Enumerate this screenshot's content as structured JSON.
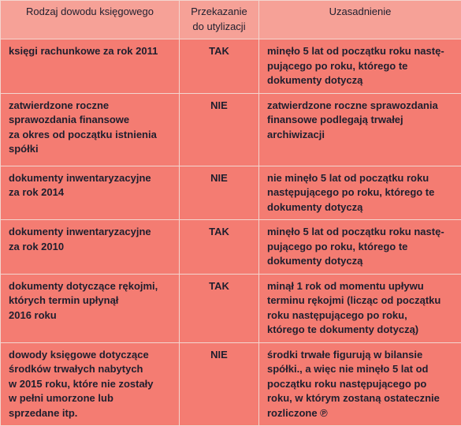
{
  "table": {
    "header": [
      [
        "Rodzaj dowodu księgowego"
      ],
      [
        "Przekazanie",
        "do utylizacji"
      ],
      [
        "Uzasadnienie"
      ]
    ],
    "rows": [
      [
        [
          "księgi rachunkowe za rok 2011"
        ],
        [
          "TAK"
        ],
        [
          "minęło 5 lat od początku roku nastę-",
          "pującego po roku, którego te",
          "dokumenty dotyczą"
        ]
      ],
      [
        [
          "zatwierdzone roczne",
          "sprawozdania finansowe",
          "za okres od początku istnienia",
          "spółki"
        ],
        [
          "NIE"
        ],
        [
          "zatwierdzone roczne sprawozdania",
          "finansowe podlegają trwałej",
          "archiwizacji"
        ]
      ],
      [
        [
          "dokumenty inwentaryzacyjne",
          "za rok 2014"
        ],
        [
          "NIE"
        ],
        [
          "nie minęło 5 lat od początku roku",
          "następującego po roku, którego te",
          "dokumenty dotyczą"
        ]
      ],
      [
        [
          "dokumenty inwentaryzacyjne",
          "za rok 2010"
        ],
        [
          "TAK"
        ],
        [
          "minęło 5 lat od początku roku nastę-",
          "pującego po roku, którego te",
          "dokumenty dotyczą"
        ]
      ],
      [
        [
          "dokumenty dotyczące rękojmi,",
          "których termin upłynął",
          "2016 roku"
        ],
        [
          "TAK"
        ],
        [
          "minął 1 rok od momentu upływu",
          "terminu rękojmi (licząc od początku",
          "roku następującego po roku,",
          "którego te dokumenty dotyczą)"
        ]
      ],
      [
        [
          "dowody księgowe dotyczące",
          "środków trwałych nabytych",
          "w 2015 roku, które nie zostały",
          "w pełni umorzone lub",
          "sprzedane itp."
        ],
        [
          "NIE"
        ],
        [
          "środki trwałe figurują w bilansie",
          "spółki., a więc nie minęło 5 lat od",
          "początku roku następującego po",
          "roku, w którym zostaną ostatecznie",
          "rozliczone ℗"
        ]
      ]
    ]
  }
}
